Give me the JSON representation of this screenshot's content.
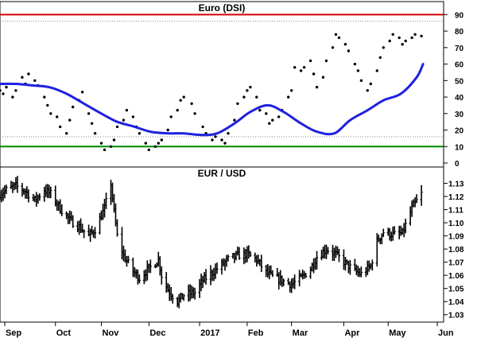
{
  "chart_data": [
    {
      "type": "scatter",
      "title": "Euro (DSI)",
      "ylim": [
        0,
        95
      ],
      "yticks": [
        0,
        10,
        20,
        30,
        40,
        50,
        60,
        70,
        80,
        90
      ],
      "reference_lines": [
        {
          "value": 90,
          "color": "#d40000"
        },
        {
          "value": 10,
          "color": "#008a00"
        }
      ],
      "dotted_lines": [
        86,
        16
      ],
      "series": [
        {
          "style": "dots",
          "color": "#000000",
          "x": [
            "2016-08-29",
            "2016-08-31",
            "2016-09-02",
            "2016-09-06",
            "2016-09-08",
            "2016-09-12",
            "2016-09-14",
            "2016-09-16",
            "2016-09-20",
            "2016-09-22",
            "2016-09-26",
            "2016-09-28",
            "2016-09-30",
            "2016-10-04",
            "2016-10-06",
            "2016-10-10",
            "2016-10-12",
            "2016-10-14",
            "2016-10-18",
            "2016-10-20",
            "2016-10-24",
            "2016-10-26",
            "2016-10-28",
            "2016-11-01",
            "2016-11-03",
            "2016-11-07",
            "2016-11-09",
            "2016-11-11",
            "2016-11-15",
            "2016-11-17",
            "2016-11-21",
            "2016-11-23",
            "2016-11-25",
            "2016-11-29",
            "2016-12-01",
            "2016-12-05",
            "2016-12-07",
            "2016-12-09",
            "2016-12-13",
            "2016-12-15",
            "2016-12-19",
            "2016-12-21",
            "2016-12-23",
            "2016-12-28",
            "2016-12-30",
            "2017-01-04",
            "2017-01-06",
            "2017-01-10",
            "2017-01-12",
            "2017-01-16",
            "2017-01-18",
            "2017-01-20",
            "2017-01-24",
            "2017-01-26",
            "2017-01-30",
            "2017-02-01",
            "2017-02-03",
            "2017-02-07",
            "2017-02-09",
            "2017-02-13",
            "2017-02-15",
            "2017-02-17",
            "2017-02-21",
            "2017-02-23",
            "2017-02-27",
            "2017-03-01",
            "2017-03-03",
            "2017-03-07",
            "2017-03-09",
            "2017-03-13",
            "2017-03-15",
            "2017-03-17",
            "2017-03-21",
            "2017-03-23",
            "2017-03-27",
            "2017-03-29",
            "2017-03-31",
            "2017-04-04",
            "2017-04-06",
            "2017-04-10",
            "2017-04-12",
            "2017-04-14",
            "2017-04-18",
            "2017-04-20",
            "2017-04-24",
            "2017-04-26",
            "2017-04-28",
            "2017-05-02",
            "2017-05-04",
            "2017-05-08",
            "2017-05-10",
            "2017-05-12",
            "2017-05-16",
            "2017-05-18",
            "2017-05-22"
          ],
          "values": [
            44,
            42,
            46,
            40,
            44,
            52,
            48,
            54,
            50,
            47,
            40,
            35,
            30,
            28,
            22,
            18,
            26,
            34,
            38,
            43,
            30,
            24,
            18,
            12,
            8,
            10,
            14,
            22,
            26,
            32,
            28,
            22,
            18,
            12,
            8,
            10,
            12,
            14,
            20,
            28,
            32,
            38,
            40,
            36,
            30,
            22,
            18,
            14,
            16,
            14,
            12,
            18,
            26,
            36,
            40,
            44,
            46,
            40,
            32,
            30,
            24,
            26,
            28,
            32,
            40,
            44,
            58,
            56,
            58,
            62,
            54,
            46,
            52,
            62,
            70,
            78,
            76,
            72,
            68,
            60,
            56,
            50,
            44,
            48,
            56,
            64,
            70,
            74,
            78,
            76,
            72,
            74,
            76,
            78,
            77
          ]
        },
        {
          "style": "line",
          "color": "#1f20e0",
          "x": [
            "2016-08-29",
            "2016-09-08",
            "2016-09-19",
            "2016-09-29",
            "2016-10-10",
            "2016-10-21",
            "2016-11-01",
            "2016-11-11",
            "2016-11-22",
            "2016-12-02",
            "2016-12-13",
            "2016-12-23",
            "2017-01-03",
            "2017-01-13",
            "2017-01-24",
            "2017-02-03",
            "2017-02-14",
            "2017-02-24",
            "2017-03-07",
            "2017-03-17",
            "2017-03-28",
            "2017-04-07",
            "2017-04-18",
            "2017-04-28",
            "2017-05-09",
            "2017-05-19",
            "2017-05-23"
          ],
          "values": [
            48,
            48,
            47,
            46,
            42,
            36,
            30,
            25,
            22,
            19,
            18,
            18,
            17,
            18,
            24,
            31,
            35,
            31,
            24,
            19,
            18,
            26,
            32,
            38,
            42,
            52,
            60
          ]
        }
      ]
    },
    {
      "type": "line",
      "title": "EUR / USD",
      "ylim": [
        1.025,
        1.14
      ],
      "yticks": [
        1.03,
        1.04,
        1.05,
        1.06,
        1.07,
        1.08,
        1.09,
        1.1,
        1.11,
        1.12,
        1.13
      ],
      "xticks": [
        "Sep",
        "Oct",
        "Nov",
        "Dec",
        "2017",
        "Feb",
        "Mar",
        "Apr",
        "May",
        "Jun"
      ],
      "xtick_dates": [
        "2016-09-01",
        "2016-10-03",
        "2016-11-01",
        "2016-12-01",
        "2017-01-02",
        "2017-02-01",
        "2017-03-01",
        "2017-04-03",
        "2017-05-01",
        "2017-06-01"
      ],
      "xrange": [
        "2016-08-29",
        "2017-06-04"
      ],
      "series": [
        {
          "style": "ohlc",
          "color": "#000000",
          "x": [
            "2016-08-29",
            "2016-09-02",
            "2016-09-08",
            "2016-09-14",
            "2016-09-20",
            "2016-09-26",
            "2016-09-30",
            "2016-10-06",
            "2016-10-12",
            "2016-10-18",
            "2016-10-24",
            "2016-10-28",
            "2016-11-03",
            "2016-11-07",
            "2016-11-09",
            "2016-11-11",
            "2016-11-15",
            "2016-11-21",
            "2016-11-25",
            "2016-12-01",
            "2016-12-07",
            "2016-12-09",
            "2016-12-13",
            "2016-12-19",
            "2016-12-23",
            "2016-12-30",
            "2017-01-04",
            "2017-01-10",
            "2017-01-16",
            "2017-01-20",
            "2017-01-26",
            "2017-02-01",
            "2017-02-07",
            "2017-02-13",
            "2017-02-17",
            "2017-02-23",
            "2017-03-01",
            "2017-03-07",
            "2017-03-13",
            "2017-03-17",
            "2017-03-23",
            "2017-03-29",
            "2017-04-04",
            "2017-04-10",
            "2017-04-14",
            "2017-04-20",
            "2017-04-24",
            "2017-04-28",
            "2017-05-04",
            "2017-05-10",
            "2017-05-16",
            "2017-05-22"
          ],
          "values": [
            1.122,
            1.125,
            1.128,
            1.124,
            1.117,
            1.125,
            1.122,
            1.111,
            1.102,
            1.097,
            1.09,
            1.095,
            1.111,
            1.13,
            1.108,
            1.09,
            1.075,
            1.063,
            1.058,
            1.065,
            1.072,
            1.06,
            1.049,
            1.04,
            1.045,
            1.047,
            1.056,
            1.062,
            1.068,
            1.072,
            1.075,
            1.076,
            1.072,
            1.062,
            1.059,
            1.056,
            1.053,
            1.058,
            1.065,
            1.074,
            1.08,
            1.076,
            1.069,
            1.063,
            1.061,
            1.067,
            1.086,
            1.093,
            1.091,
            1.092,
            1.111,
            1.122
          ]
        }
      ]
    }
  ]
}
